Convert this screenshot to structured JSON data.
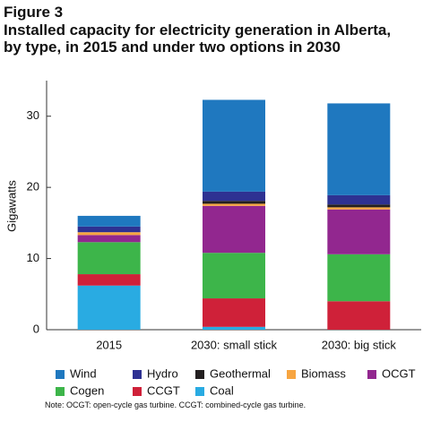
{
  "chart_data": {
    "type": "stacked_bar",
    "title": "Figure 3",
    "subtitle": "Installed capacity for electricity generation in Alberta, by type, in 2015 and under two options in 2030",
    "y_label": "Gigawatts",
    "note": "Note: OCGT: open-cycle gas turbine. CCGT: combined-cycle gas turbine.",
    "categories": [
      "2015",
      "2030: small stick",
      "2030: big stick"
    ],
    "series": [
      {
        "name": "Wind",
        "color": "#1f78bf",
        "values": [
          1.5,
          12.9,
          12.9
        ]
      },
      {
        "name": "Hydro",
        "color": "#2e3192",
        "values": [
          0.8,
          1.3,
          1.3
        ]
      },
      {
        "name": "Geothermal",
        "color": "#231f20",
        "values": [
          0,
          0.4,
          0.4
        ]
      },
      {
        "name": "Biomass",
        "color": "#f7a541",
        "values": [
          0.4,
          0.3,
          0.3
        ]
      },
      {
        "name": "OCGT",
        "color": "#92278f",
        "values": [
          1.0,
          6.6,
          6.3
        ]
      },
      {
        "name": "Cogen",
        "color": "#3db54a",
        "values": [
          4.5,
          6.4,
          6.6
        ]
      },
      {
        "name": "CCGT",
        "color": "#cf2139",
        "values": [
          1.6,
          4.0,
          4.0
        ]
      },
      {
        "name": "Coal",
        "color": "#29abe2",
        "values": [
          6.2,
          0.4,
          0
        ]
      }
    ],
    "ylim": [
      0,
      35
    ],
    "yticks": [
      0,
      10,
      20,
      30
    ]
  }
}
